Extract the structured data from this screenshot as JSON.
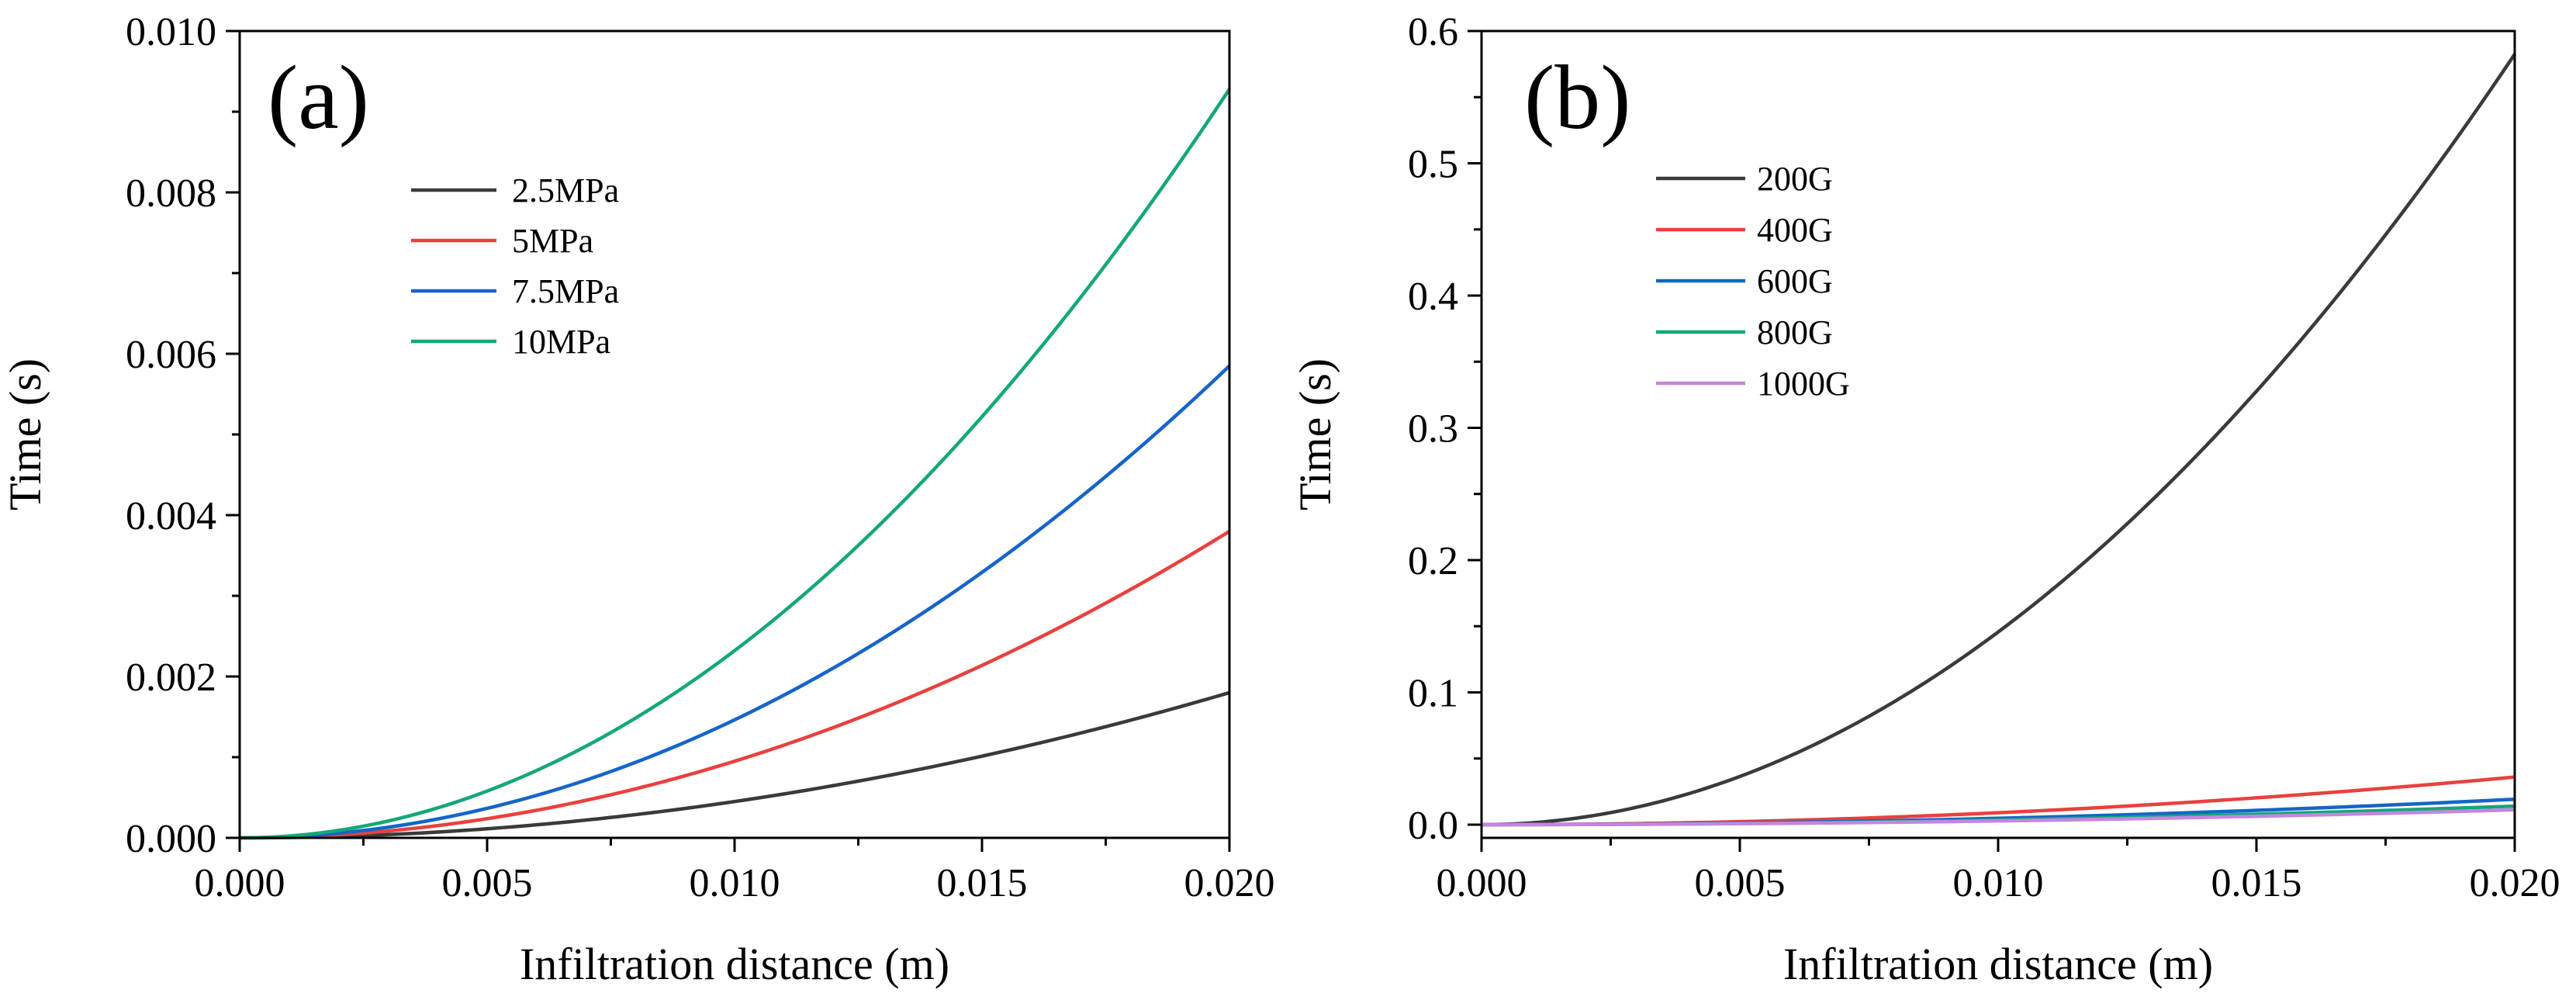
{
  "figure": {
    "description_label": "Two-panel line chart"
  },
  "chart_data": [
    {
      "type": "line",
      "panel_label": "(a)",
      "title": "",
      "xlabel": "Infiltration distance (m)",
      "ylabel": "Time (s)",
      "xlim": [
        0,
        0.02
      ],
      "ylim": [
        0,
        0.01
      ],
      "xticks": [
        0,
        0.005,
        0.01,
        0.015,
        0.02
      ],
      "xtick_labels": [
        "0.000",
        "0.005",
        "0.010",
        "0.015",
        "0.020"
      ],
      "yticks": [
        0,
        0.002,
        0.004,
        0.006,
        0.008,
        0.01
      ],
      "ytick_labels": [
        "0.000",
        "0.002",
        "0.004",
        "0.006",
        "0.008",
        "0.010"
      ],
      "grid": false,
      "legend_position": "upper-left",
      "series": [
        {
          "name": "2.5MPa",
          "color": "#3a3a3a",
          "x": [
            0,
            0.0025,
            0.005,
            0.0075,
            0.01,
            0.0125,
            0.015,
            0.0175,
            0.02
          ],
          "values": [
            0,
            3e-05,
            0.00011,
            0.00025,
            0.00045,
            0.0007,
            0.00101,
            0.00138,
            0.0018
          ]
        },
        {
          "name": "5MPa",
          "color": "#e8413f",
          "x": [
            0,
            0.0025,
            0.005,
            0.0075,
            0.01,
            0.0125,
            0.015,
            0.0175,
            0.02
          ],
          "values": [
            0,
            6e-05,
            0.00024,
            0.00053,
            0.00095,
            0.00148,
            0.00213,
            0.0029,
            0.0038
          ]
        },
        {
          "name": "7.5MPa",
          "color": "#1565c8",
          "x": [
            0,
            0.0025,
            0.005,
            0.0075,
            0.01,
            0.0125,
            0.015,
            0.0175,
            0.02
          ],
          "values": [
            0,
            9e-05,
            0.00037,
            0.00082,
            0.00146,
            0.00229,
            0.00329,
            0.00448,
            0.00585
          ]
        },
        {
          "name": "10MPa",
          "color": "#14a77a",
          "x": [
            0,
            0.0025,
            0.005,
            0.0075,
            0.01,
            0.0125,
            0.015,
            0.0175,
            0.02
          ],
          "values": [
            0,
            0.00015,
            0.00058,
            0.0013,
            0.00232,
            0.00362,
            0.00522,
            0.0071,
            0.00928
          ]
        }
      ]
    },
    {
      "type": "line",
      "panel_label": "(b)",
      "title": "",
      "xlabel": "Infiltration distance (m)",
      "ylabel": "Time (s)",
      "xlim": [
        0,
        0.02
      ],
      "ylim": [
        -0.01,
        0.6
      ],
      "xticks": [
        0,
        0.005,
        0.01,
        0.015,
        0.02
      ],
      "xtick_labels": [
        "0.000",
        "0.005",
        "0.010",
        "0.015",
        "0.020"
      ],
      "yticks": [
        0,
        0.1,
        0.2,
        0.3,
        0.4,
        0.5,
        0.6
      ],
      "ytick_labels": [
        "0.0",
        "0.1",
        "0.2",
        "0.3",
        "0.4",
        "0.5",
        "0.6"
      ],
      "grid": false,
      "legend_position": "upper-left",
      "series": [
        {
          "name": "200G",
          "color": "#3a3a3a",
          "x": [
            0,
            0.0025,
            0.005,
            0.0075,
            0.01,
            0.0125,
            0.015,
            0.0175,
            0.02
          ],
          "values": [
            0,
            0.0091,
            0.0364,
            0.082,
            0.1456,
            0.2275,
            0.3276,
            0.4459,
            0.5825
          ]
        },
        {
          "name": "400G",
          "color": "#e8413f",
          "x": [
            0,
            0.0025,
            0.005,
            0.0075,
            0.01,
            0.0125,
            0.015,
            0.0175,
            0.02
          ],
          "values": [
            0,
            0.00056,
            0.00225,
            0.00506,
            0.009,
            0.01406,
            0.02025,
            0.02756,
            0.036
          ]
        },
        {
          "name": "600G",
          "color": "#1565c8",
          "x": [
            0,
            0.0025,
            0.005,
            0.0075,
            0.01,
            0.0125,
            0.015,
            0.0175,
            0.02
          ],
          "values": [
            0,
            0.0003,
            0.0012,
            0.0027,
            0.0048,
            0.0075,
            0.0108,
            0.0147,
            0.0192
          ]
        },
        {
          "name": "800G",
          "color": "#14a77a",
          "x": [
            0,
            0.0025,
            0.005,
            0.0075,
            0.01,
            0.0125,
            0.015,
            0.0175,
            0.02
          ],
          "values": [
            0,
            0.00022,
            0.00088,
            0.00197,
            0.0035,
            0.00547,
            0.00788,
            0.01072,
            0.014
          ]
        },
        {
          "name": "1000G",
          "color": "#c486e0",
          "x": [
            0,
            0.0025,
            0.005,
            0.0075,
            0.01,
            0.0125,
            0.015,
            0.0175,
            0.02
          ],
          "values": [
            0,
            0.00018,
            0.0007,
            0.00158,
            0.0028,
            0.00438,
            0.0063,
            0.00858,
            0.0112
          ]
        }
      ]
    }
  ]
}
